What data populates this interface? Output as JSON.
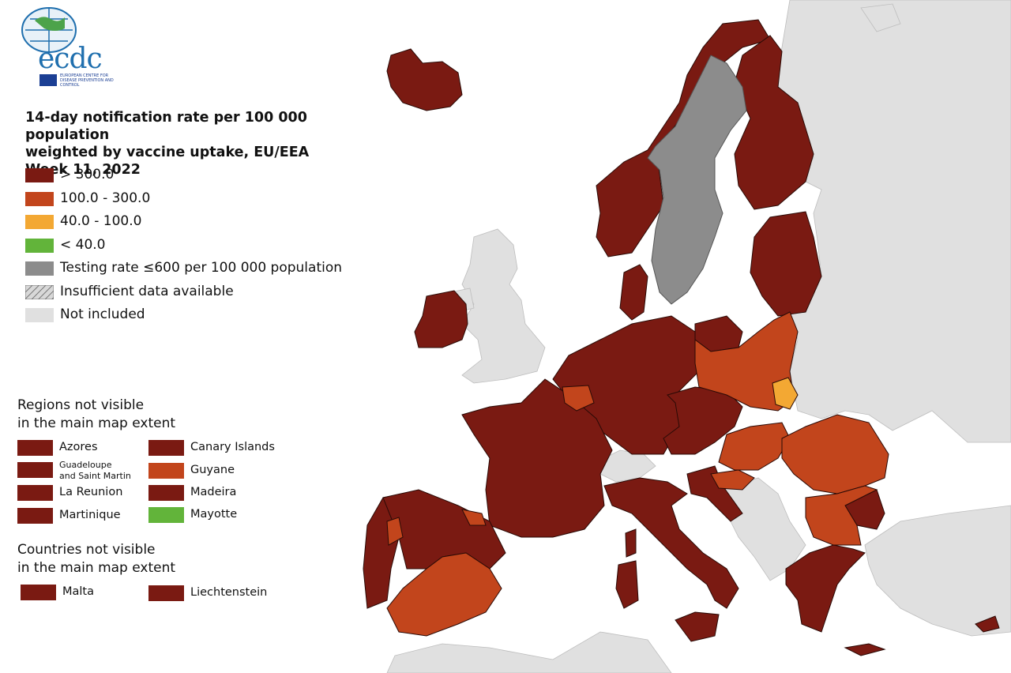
{
  "logo": {
    "wordmark": "ecdc",
    "subtitle": "EUROPEAN CENTRE FOR DISEASE PREVENTION AND CONTROL"
  },
  "title": {
    "line1": "14-day notification rate per 100 000 population",
    "line2": "weighted by vaccine uptake, EU/EEA",
    "line3": "Week 11, 2022"
  },
  "colors": {
    "over300": "#7a1a12",
    "r100_300": "#c2451c",
    "r40_100": "#f3a833",
    "under40": "#62b43a",
    "testing": "#8c8c8c",
    "notIncluded": "#e0e0e0",
    "sea": "#ffffff",
    "border": "#1a1a1a"
  },
  "legend": [
    {
      "key": "over300",
      "label": "> 300.0",
      "color": "#7a1a12"
    },
    {
      "key": "r100_300",
      "label": "100.0 - 300.0",
      "color": "#c2451c"
    },
    {
      "key": "r40_100",
      "label": "40.0 - 100.0",
      "color": "#f3a833"
    },
    {
      "key": "under40",
      "label": "< 40.0",
      "color": "#62b43a"
    },
    {
      "key": "testing",
      "label": "Testing rate ≤600 per 100 000 population",
      "color": "#8c8c8c"
    },
    {
      "key": "insufficient",
      "label": "Insufficient data available",
      "color": "hatched"
    },
    {
      "key": "notIncluded",
      "label": "Not included",
      "color": "#e0e0e0"
    }
  ],
  "regions_heading": {
    "line1": "Regions not visible",
    "line2": "in the main map extent"
  },
  "regions": [
    {
      "name": "Azores",
      "color": "#7a1a12"
    },
    {
      "name": "Guadeloupe and Saint Martin",
      "line1": "Guadeloupe",
      "line2": "and Saint Martin",
      "color": "#7a1a12"
    },
    {
      "name": "La Reunion",
      "color": "#7a1a12"
    },
    {
      "name": "Martinique",
      "color": "#7a1a12"
    },
    {
      "name": "Canary Islands",
      "color": "#7a1a12"
    },
    {
      "name": "Guyane",
      "color": "#c2451c"
    },
    {
      "name": "Madeira",
      "color": "#7a1a12"
    },
    {
      "name": "Mayotte",
      "color": "#62b43a"
    }
  ],
  "countries_heading": {
    "line1": "Countries not visible",
    "line2": "in the main map extent"
  },
  "countries": [
    {
      "name": "Malta",
      "color": "#7a1a12"
    },
    {
      "name": "Liechtenstein",
      "color": "#7a1a12"
    }
  ]
}
